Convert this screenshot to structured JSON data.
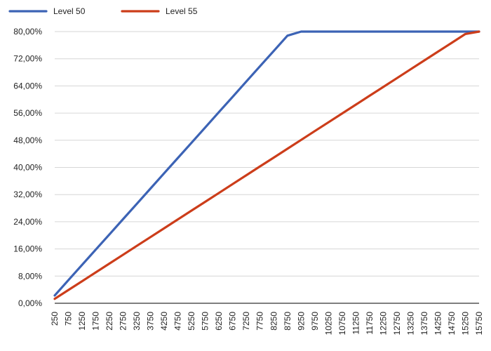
{
  "chart_data": {
    "type": "line",
    "x": [
      250,
      750,
      1250,
      1750,
      2250,
      2750,
      3250,
      3750,
      4250,
      4750,
      5250,
      5750,
      6250,
      6750,
      7250,
      7750,
      8250,
      8750,
      9250,
      9750,
      10250,
      10750,
      11250,
      11750,
      12250,
      12750,
      13250,
      13750,
      14250,
      14750,
      15250,
      15750
    ],
    "x_tick_labels": [
      "250",
      "750",
      "1250",
      "1750",
      "2250",
      "2750",
      "3250",
      "3750",
      "4250",
      "4750",
      "5250",
      "5750",
      "6250",
      "6750",
      "7250",
      "7750",
      "8250",
      "8750",
      "9250",
      "9750",
      "10250",
      "10750",
      "11250",
      "11750",
      "12250",
      "12750",
      "13250",
      "13750",
      "14250",
      "14750",
      "15250",
      "15750"
    ],
    "y_tick_labels": [
      "0,00%",
      "8,00%",
      "16,00%",
      "24,00%",
      "32,00%",
      "40,00%",
      "48,00%",
      "56,00%",
      "64,00%",
      "72,00%",
      "80,00%"
    ],
    "y_ticks": [
      0,
      8,
      16,
      24,
      32,
      40,
      48,
      56,
      64,
      72,
      80
    ],
    "ylim": [
      0,
      80
    ],
    "y_unit": "%",
    "grid": "horizontal",
    "legend_position": "top-left",
    "series": [
      {
        "name": "Level 50",
        "color": "#3c63b5",
        "values": [
          2.3,
          6.8,
          11.3,
          15.8,
          20.3,
          24.8,
          29.3,
          33.8,
          38.3,
          42.8,
          47.3,
          51.8,
          56.3,
          60.8,
          65.3,
          69.8,
          74.3,
          78.8,
          80,
          80,
          80,
          80,
          80,
          80,
          80,
          80,
          80,
          80,
          80,
          80,
          80,
          80
        ]
      },
      {
        "name": "Level 55",
        "color": "#cc3d1a",
        "values": [
          1.3,
          3.9,
          6.5,
          9.1,
          11.7,
          14.3,
          16.9,
          19.5,
          22.1,
          24.7,
          27.3,
          29.9,
          32.5,
          35.1,
          37.7,
          40.3,
          42.9,
          45.5,
          48.1,
          50.7,
          53.3,
          55.9,
          58.5,
          61.1,
          63.7,
          66.3,
          68.9,
          71.5,
          74.1,
          76.7,
          79.3,
          80
        ]
      }
    ]
  }
}
